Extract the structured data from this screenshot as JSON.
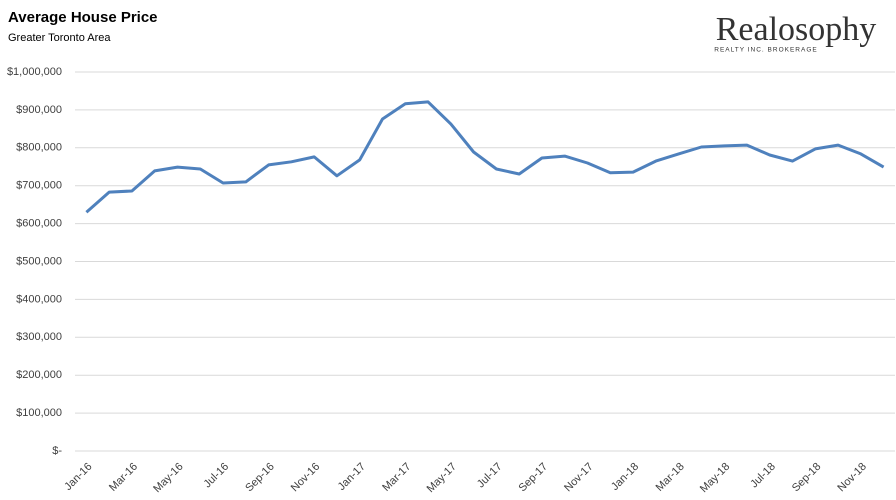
{
  "chart_data": {
    "type": "line",
    "title": "Average House Price",
    "subtitle": "Greater Toronto Area",
    "logo": {
      "name": "Realosophy",
      "tagline": "REALTY INC. BROKERAGE"
    },
    "categories": [
      "Jan-16",
      null,
      "Mar-16",
      null,
      "May-16",
      null,
      "Jul-16",
      null,
      "Sep-16",
      null,
      "Nov-16",
      null,
      "Jan-17",
      null,
      "Mar-17",
      null,
      "May-17",
      null,
      "Jul-17",
      null,
      "Sep-17",
      null,
      "Nov-17",
      null,
      "Jan-18",
      null,
      "Mar-18",
      null,
      "May-18",
      null,
      "Jul-18",
      null,
      "Sep-18",
      null,
      "Nov-18",
      null
    ],
    "series": [
      {
        "name": "Average House Price",
        "color": "#4f81bd",
        "values": [
          630000,
          683000,
          686000,
          739000,
          749000,
          744000,
          707000,
          710000,
          755000,
          763000,
          776000,
          726000,
          768000,
          876000,
          916000,
          921000,
          863000,
          789000,
          744000,
          731000,
          773000,
          778000,
          760000,
          734000,
          736000,
          765000,
          784000,
          802000,
          805000,
          807000,
          781000,
          765000,
          797000,
          807000,
          784000,
          749000
        ]
      }
    ],
    "ylim": [
      0,
      1000000
    ],
    "yticks": [
      {
        "value": 0,
        "label": "$-"
      },
      {
        "value": 100000,
        "label": "$100,000"
      },
      {
        "value": 200000,
        "label": "$200,000"
      },
      {
        "value": 300000,
        "label": "$300,000"
      },
      {
        "value": 400000,
        "label": "$400,000"
      },
      {
        "value": 500000,
        "label": "$500,000"
      },
      {
        "value": 600000,
        "label": "$600,000"
      },
      {
        "value": 700000,
        "label": "$700,000"
      },
      {
        "value": 800000,
        "label": "$800,000"
      },
      {
        "value": 900000,
        "label": "$900,000"
      },
      {
        "value": 1000000,
        "label": "$1,000,000"
      }
    ],
    "grid": true
  }
}
